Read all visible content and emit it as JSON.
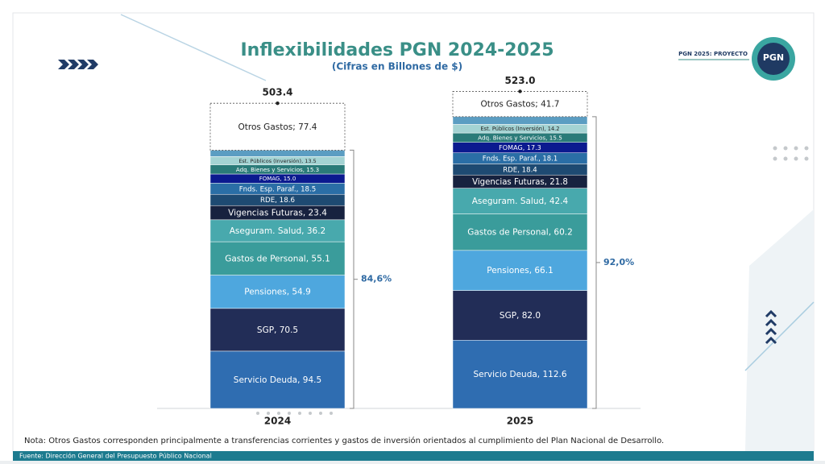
{
  "header": {
    "title": "Inflexibilidades PGN 2024-2025",
    "subtitle": "(Cifras en Billones de $)",
    "logo_text": "PGN 2025: PROYECTO",
    "logo_badge": "PGN"
  },
  "chart_data": {
    "type": "stacked_bar",
    "categories": [
      "2024",
      "2025"
    ],
    "ylim": [
      0,
      600
    ],
    "series": [
      {
        "color": "#2f6db1",
        "values": [
          94.5,
          112.6
        ],
        "value_labels": [
          "Servicio Deuda, 94.5",
          "Servicio Deuda, 112.6"
        ]
      },
      {
        "color": "#222d57",
        "values": [
          70.5,
          82.0
        ],
        "value_labels": [
          "SGP, 70.5",
          "SGP, 82.0"
        ]
      },
      {
        "color": "#4ea7de",
        "values": [
          54.9,
          66.1
        ],
        "value_labels": [
          "Pensiones, 54.9",
          "Pensiones, 66.1"
        ]
      },
      {
        "color": "#3a9c9b",
        "values": [
          55.1,
          60.2
        ],
        "value_labels": [
          "Gastos de Personal, 55.1",
          "Gastos de Personal, 60.2"
        ]
      },
      {
        "color": "#48a9ad",
        "values": [
          36.2,
          42.4
        ],
        "value_labels": [
          "Aseguram. Salud, 36.2",
          "Aseguram. Salud, 42.4"
        ]
      },
      {
        "color": "#17223f",
        "values": [
          23.4,
          21.8
        ],
        "value_labels": [
          "Vigencias Futuras, 23.4",
          "Vigencias Futuras, 21.8"
        ]
      },
      {
        "color": "#1e4a72",
        "values": [
          18.6,
          18.4
        ],
        "value_labels": [
          "RDE, 18.6",
          "RDE, 18.4"
        ]
      },
      {
        "color": "#2a6ea6",
        "values": [
          18.5,
          18.1
        ],
        "value_labels": [
          "Fnds. Esp. Paraf., 18.5",
          "Fnds. Esp. Paraf., 18.1"
        ]
      },
      {
        "color": "#0b1a8f",
        "values": [
          15.0,
          17.3
        ],
        "value_labels": [
          "FOMAG, 15.0",
          "FOMAG, 17.3"
        ]
      },
      {
        "color": "#2a7b79",
        "values": [
          15.3,
          15.5
        ],
        "value_labels": [
          "Adq. Bienes y Servicios, 15.3",
          "Adq. Bienes y Servicios, 15.5"
        ]
      },
      {
        "color": "#a4d3d3",
        "values": [
          13.5,
          14.2
        ],
        "value_labels": [
          "Est. Públicos (Inversión), 13.5",
          "Est. Públicos (Inversión), 14.2"
        ]
      },
      {
        "color": "#5b9dc2",
        "values": [
          10.5,
          12.7
        ]
      },
      {
        "color": "#ffffff",
        "values": [
          77.4,
          41.7
        ],
        "value_labels": [
          "Otros Gastos; 77.4",
          "Otros Gastos; 41.7"
        ]
      }
    ],
    "totals": [
      503.4,
      523.0
    ],
    "total_labels": [
      "503.4",
      "523.0"
    ],
    "annotations": [
      "84,6%",
      "92,0%"
    ]
  },
  "footer": {
    "note": "Nota: Otros Gastos corresponden principalmente a transferencias corrientes y gastos de inversión orientados al cumplimiento del Plan Nacional de Desarrollo.",
    "source": "Fuente: Dirección General del Presupuesto Público Nacional"
  }
}
